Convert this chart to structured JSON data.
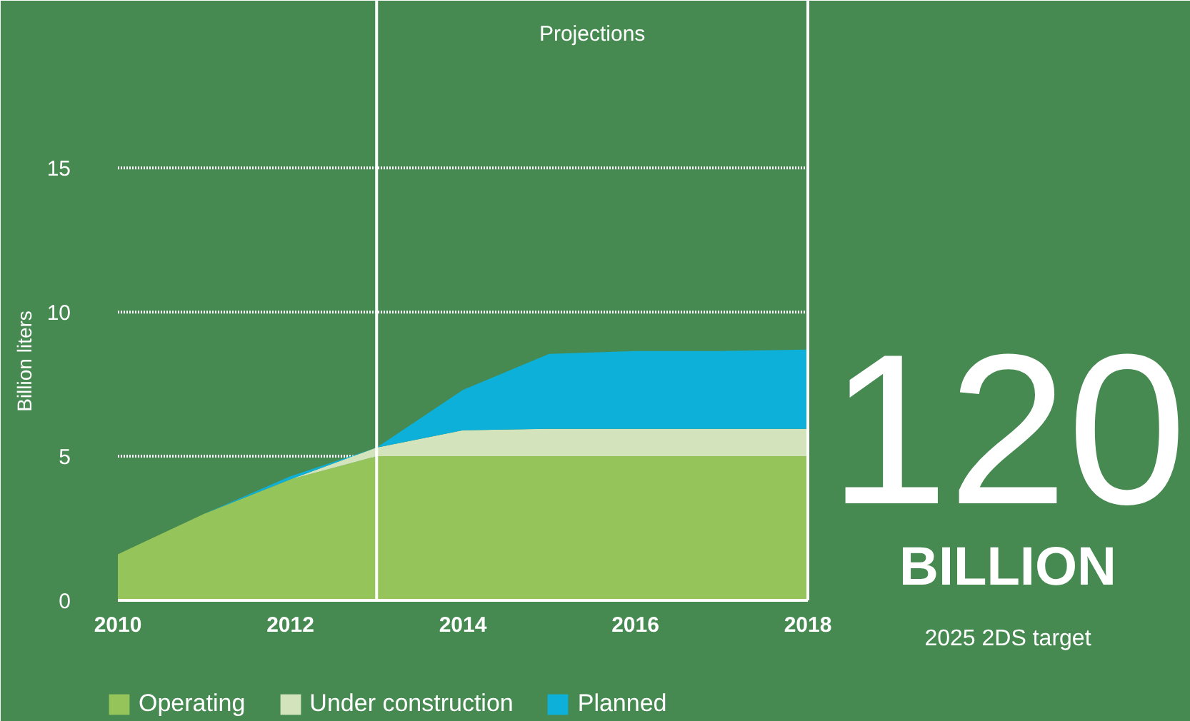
{
  "chart_data": {
    "type": "area",
    "stacked": true,
    "ylabel": "Billion liters",
    "x": [
      2010,
      2011,
      2012,
      2013,
      2014,
      2015,
      2016,
      2017,
      2018
    ],
    "series": [
      {
        "name": "Operating",
        "color": "#95c45a",
        "values": [
          1.6,
          3.0,
          4.2,
          5.0,
          5.0,
          5.0,
          5.0,
          5.0,
          5.0
        ]
      },
      {
        "name": "Under construction",
        "color": "#d3e4bd",
        "values": [
          0,
          0,
          0,
          0.3,
          0.9,
          0.95,
          0.95,
          0.95,
          0.95
        ]
      },
      {
        "name": "Planned",
        "color": "#0db0d8",
        "values": [
          0,
          0,
          0.1,
          0,
          1.4,
          2.6,
          2.7,
          2.7,
          2.75
        ]
      }
    ],
    "xlim": [
      2010,
      2018
    ],
    "xticks": [
      2010,
      2012,
      2014,
      2016,
      2018
    ],
    "ylim": [
      0,
      20.8
    ],
    "yticks": [
      0,
      5,
      10,
      15
    ],
    "grid": "y",
    "legend": "bottom",
    "ref_lines": [
      {
        "axis": "x",
        "value": 2013,
        "color": "#ffffff"
      },
      {
        "axis": "x",
        "value": 2018,
        "color": "#ffffff"
      }
    ],
    "annotations": [
      "Projections",
      "120",
      "BILLION",
      "2025 2DS target"
    ]
  }
}
